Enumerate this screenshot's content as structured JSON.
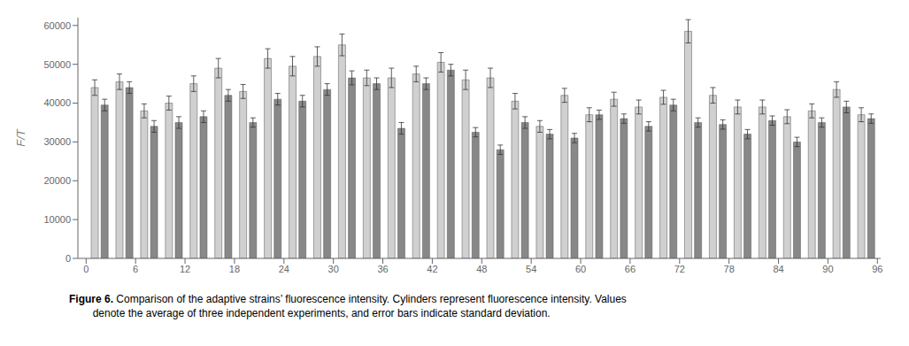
{
  "chart_data": {
    "type": "bar",
    "title": "",
    "ylabel": "F/T",
    "caption_bold": "Figure 6.",
    "caption": " Comparison of the adaptive strains’ fluorescence intensity. Cylinders represent fluorescence intensity. Values\n        denote the average of three independent experiments, and error bars indicate standard deviation.",
    "x": [
      1,
      2.2,
      4,
      5.2,
      7,
      8.2,
      10,
      11.2,
      13,
      14.2,
      16,
      17.2,
      19,
      20.2,
      22,
      23.2,
      25,
      26.2,
      28,
      29.2,
      31,
      32.2,
      34,
      35.2,
      37,
      38.2,
      40,
      41.2,
      43,
      44.2,
      46,
      47.2,
      49,
      50.2,
      52,
      53.2,
      55,
      56.2,
      58,
      59.2,
      61,
      62.2,
      64,
      65.2,
      67,
      68.2,
      70,
      71.2,
      73,
      74.2,
      76,
      77.2,
      79,
      80.2,
      82,
      83.2,
      85,
      86.2,
      88,
      89.2,
      91,
      92.2,
      94,
      95.2
    ],
    "values": [
      44000,
      39500,
      45500,
      44000,
      38000,
      34000,
      40000,
      35000,
      45000,
      36500,
      49000,
      42000,
      43000,
      35000,
      51500,
      41000,
      49500,
      40500,
      52000,
      43500,
      55000,
      46500,
      46500,
      45000,
      46500,
      33500,
      47500,
      45000,
      50500,
      48500,
      46000,
      32500,
      46500,
      28000,
      40500,
      35000,
      34000,
      32000,
      42000,
      31000,
      37000,
      37000,
      41000,
      36000,
      39000,
      34000,
      41500,
      39500,
      58500,
      35000,
      42000,
      34500,
      39000,
      32000,
      39000,
      35500,
      36500,
      30000,
      38000,
      35000,
      43500,
      39000,
      37000,
      36000
    ],
    "errors": [
      2000,
      1500,
      2000,
      1500,
      1800,
      1500,
      1800,
      1500,
      2000,
      1500,
      2500,
      1500,
      1800,
      1200,
      2500,
      1500,
      2500,
      1500,
      2500,
      1500,
      2800,
      1800,
      2000,
      1500,
      2500,
      1500,
      2000,
      1500,
      2500,
      1500,
      2500,
      1200,
      2500,
      1200,
      2000,
      1500,
      1500,
      1200,
      1800,
      1200,
      1800,
      1200,
      1800,
      1200,
      1800,
      1200,
      1800,
      1500,
      3000,
      1200,
      2000,
      1200,
      1800,
      1200,
      1800,
      1200,
      1800,
      1200,
      1800,
      1200,
      2000,
      1500,
      1800,
      1200
    ],
    "colors": [
      "#d0d0d0",
      "#888888",
      "#d0d0d0",
      "#888888",
      "#d0d0d0",
      "#888888",
      "#d0d0d0",
      "#888888",
      "#d0d0d0",
      "#888888",
      "#d0d0d0",
      "#888888",
      "#d0d0d0",
      "#888888",
      "#d0d0d0",
      "#888888",
      "#d0d0d0",
      "#888888",
      "#d0d0d0",
      "#888888",
      "#d0d0d0",
      "#888888",
      "#d0d0d0",
      "#888888",
      "#d0d0d0",
      "#888888",
      "#d0d0d0",
      "#888888",
      "#d0d0d0",
      "#888888",
      "#d0d0d0",
      "#888888",
      "#d0d0d0",
      "#888888",
      "#d0d0d0",
      "#888888",
      "#d0d0d0",
      "#888888",
      "#d0d0d0",
      "#888888",
      "#d0d0d0",
      "#888888",
      "#d0d0d0",
      "#888888",
      "#d0d0d0",
      "#888888",
      "#d0d0d0",
      "#888888",
      "#d0d0d0",
      "#888888",
      "#d0d0d0",
      "#888888",
      "#d0d0d0",
      "#888888",
      "#d0d0d0",
      "#888888",
      "#d0d0d0",
      "#888888",
      "#d0d0d0",
      "#888888",
      "#d0d0d0",
      "#888888",
      "#d0d0d0",
      "#888888"
    ],
    "xlim": [
      -1,
      96.4
    ],
    "xticks": [
      0,
      6,
      12,
      18,
      24,
      30,
      36,
      42,
      48,
      54,
      60,
      66,
      72,
      78,
      84,
      90,
      96
    ],
    "ylim": [
      0,
      62000
    ],
    "yticks": [
      0,
      10000,
      20000,
      30000,
      40000,
      50000,
      60000
    ],
    "grid": false
  }
}
